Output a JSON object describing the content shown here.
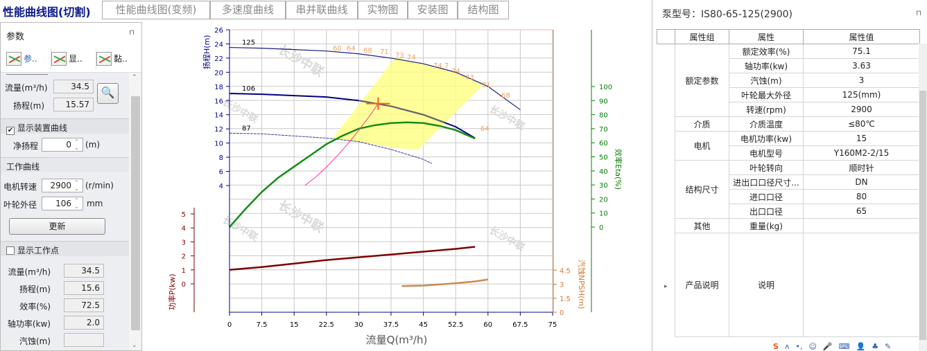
{
  "tabs": {
    "active": "性能曲线图(切割)",
    "items": [
      "性能曲线图(变频)",
      "多速度曲线",
      "串并联曲线",
      "实物图",
      "安装图",
      "结构图"
    ]
  },
  "left_panel": {
    "title": "参数",
    "pin": "⊓",
    "toolbar": [
      {
        "label": "参..",
        "icon": "curve-edit-icon"
      },
      {
        "label": "显..",
        "icon": "curve-display-icon"
      },
      {
        "label": "黏..",
        "icon": "curve-paste-icon"
      }
    ],
    "query": {
      "flow_label": "流量(m³/h)",
      "flow_value": "34.5",
      "head_label": "扬程(m)",
      "head_value": "15.57",
      "search_icon": "magnifier-icon"
    },
    "device_curve": {
      "label": "显示装置曲线",
      "checked": true,
      "static_head_label": "净扬程",
      "static_head_value": "0",
      "unit": "(m)"
    },
    "work_curve": {
      "label": "工作曲线",
      "speed_label": "电机转速",
      "speed_value": "2900",
      "speed_unit": "(r/min)",
      "dia_label": "叶轮外径",
      "dia_value": "106",
      "dia_unit": "mm",
      "update_button": "更新"
    },
    "work_point": {
      "label": "显示工作点",
      "checked": false,
      "rows": [
        {
          "label": "流量(m³/h)",
          "value": "34.5"
        },
        {
          "label": "扬程(m)",
          "value": "15.6"
        },
        {
          "label": "效率(%)",
          "value": "72.5"
        },
        {
          "label": "轴功率(kw)",
          "value": "2.0"
        },
        {
          "label": "汽蚀(m)",
          "value": ""
        }
      ]
    }
  },
  "chart_data": {
    "type": "line",
    "xlabel": "流量Q(m³/h)",
    "xlim": [
      0,
      75
    ],
    "xticks": [
      "0",
      "7.5",
      "15",
      "22.5",
      "30",
      "37.5",
      "45",
      "52.5",
      "60",
      "67.5",
      "75"
    ],
    "grid": true,
    "watermark": "长沙中联",
    "axes": {
      "head": {
        "label": "扬程H(m)",
        "ticks": [
          4,
          6,
          8,
          10,
          12,
          14,
          16,
          18,
          20,
          22,
          24,
          26
        ],
        "color": "#00008b"
      },
      "power": {
        "label": "功率P(kw)",
        "ticks": [
          0,
          1,
          2,
          3,
          4,
          5
        ],
        "color": "#800000"
      },
      "eta": {
        "label": "效率Eta(%)",
        "ticks": [
          0,
          10,
          20,
          30,
          40,
          50,
          60,
          70,
          80,
          90,
          100
        ],
        "color": "#008000"
      },
      "npsh": {
        "label": "汽蚀NPSH(m)",
        "ticks": [
          "0",
          "1.5",
          "3",
          "4.5"
        ],
        "color": "#cc7a30"
      }
    },
    "series": [
      {
        "name": "125",
        "axis": "head",
        "color": "#1a1a80",
        "x": [
          0,
          7.5,
          15,
          22.5,
          30,
          37.5,
          45,
          52.5,
          60,
          67.5
        ],
        "y": [
          23.5,
          23.4,
          23.2,
          23.0,
          22.6,
          22.0,
          21.2,
          20.0,
          18.0,
          14.7
        ]
      },
      {
        "name": "106",
        "axis": "head",
        "color": "#000080",
        "x": [
          0,
          7.5,
          15,
          22.5,
          30,
          37.5,
          45,
          52.5,
          57
        ],
        "y": [
          17.0,
          16.9,
          16.7,
          16.5,
          16.0,
          15.2,
          14.0,
          12.3,
          10.7
        ]
      },
      {
        "name": "87",
        "axis": "head",
        "color": "#3a3aa0",
        "x": [
          0,
          7.5,
          15,
          22.5,
          30,
          37.5,
          45,
          47
        ],
        "y": [
          11.4,
          11.3,
          11.0,
          10.7,
          10.2,
          9.1,
          7.7,
          7.1
        ]
      },
      {
        "axis": "eta",
        "color": "#148c14",
        "x": [
          0,
          3.75,
          7.5,
          11.25,
          15,
          18.75,
          22.5,
          26.25,
          30,
          33.75,
          37.5,
          41.25,
          45,
          48.75,
          52.5,
          57
        ],
        "y": [
          0,
          13,
          25,
          35,
          43,
          51,
          59,
          65,
          70,
          72.5,
          74,
          74.5,
          74,
          72,
          69,
          63
        ]
      },
      {
        "axis": "power",
        "color": "#800000",
        "x": [
          0,
          7.5,
          15,
          22.5,
          30,
          37.5,
          45,
          52.5,
          57
        ],
        "y": [
          1.0,
          1.2,
          1.45,
          1.7,
          1.9,
          2.1,
          2.3,
          2.5,
          2.65
        ]
      },
      {
        "axis": "npsh",
        "color": "#cc8a50",
        "x": [
          40,
          45,
          52.5,
          57,
          60
        ],
        "y": [
          2.8,
          2.85,
          3.1,
          3.3,
          3.5
        ]
      },
      {
        "axis": "head",
        "color": "#ff3399",
        "x": [
          17.5,
          20,
          22.5,
          25,
          27.5,
          30,
          32.5,
          34.5
        ],
        "y": [
          4.0,
          5.2,
          6.6,
          8.2,
          9.9,
          11.8,
          13.8,
          15.57
        ]
      }
    ],
    "efficiency_labels": [
      "60",
      "64",
      "68",
      "71",
      "73",
      "74",
      "74.7",
      "74",
      "73",
      "71",
      "68",
      "64"
    ],
    "operating_point": {
      "q": 34.5,
      "h": 15.57,
      "color": "#ff5a1a"
    },
    "region_color": "#ffff80"
  },
  "right_panel": {
    "title": "泵型号：IS80-65-125(2900)",
    "headers": [
      "属性组",
      "属性",
      "属性值"
    ],
    "groups": [
      {
        "group": "额定参数",
        "rows": [
          [
            "额定效率(%)",
            "75.1"
          ],
          [
            "轴功率(kw)",
            "3.63"
          ],
          [
            "汽蚀(m)",
            "3"
          ],
          [
            "叶轮最大外径",
            "125(mm)"
          ],
          [
            "转速(rpm)",
            "2900"
          ]
        ]
      },
      {
        "group": "介质",
        "rows": [
          [
            "介质温度",
            "≤80℃"
          ]
        ]
      },
      {
        "group": "电机",
        "rows": [
          [
            "电机功率(kw)",
            "15"
          ],
          [
            "电机型号",
            "Y160M2-2/15"
          ]
        ]
      },
      {
        "group": "结构尺寸",
        "rows": [
          [
            "叶轮转向",
            "顺时针"
          ],
          [
            "进出口口径尺寸...",
            "DN"
          ],
          [
            "进口口径",
            "80"
          ],
          [
            "出口口径",
            "65"
          ]
        ]
      },
      {
        "group": "其他",
        "rows": [
          [
            "重量(kg)",
            ""
          ]
        ]
      },
      {
        "group": "产品说明",
        "rows": [
          [
            "说明",
            ""
          ]
        ]
      }
    ]
  }
}
